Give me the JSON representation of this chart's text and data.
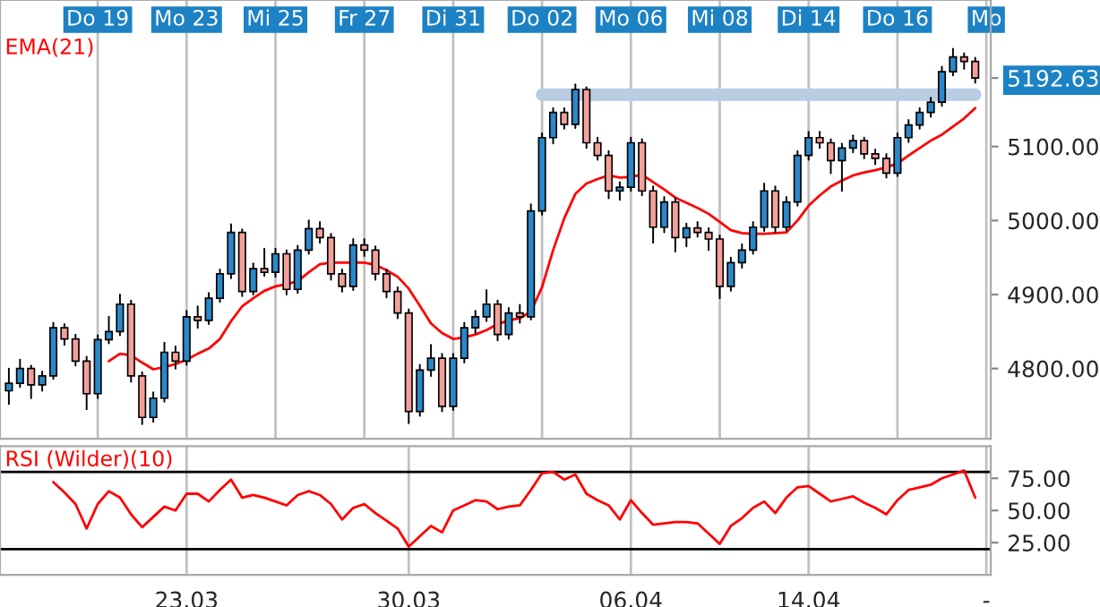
{
  "chart_data": [
    {
      "type": "candlestick",
      "categories": [
        null,
        null,
        null,
        null,
        null,
        null,
        null,
        null,
        "Do 19",
        null,
        null,
        null,
        null,
        null,
        null,
        null,
        "Mo 23",
        null,
        null,
        null,
        null,
        null,
        null,
        null,
        "Mi 25",
        null,
        null,
        null,
        null,
        null,
        null,
        null,
        "Fr 27",
        null,
        null,
        null,
        null,
        null,
        null,
        null,
        "Di 31",
        null,
        null,
        null,
        null,
        null,
        null,
        null,
        "Do 02",
        null,
        null,
        null,
        null,
        null,
        null,
        null,
        "Mo 06",
        null,
        null,
        null,
        null,
        null,
        null,
        null,
        "Mi 08",
        null,
        null,
        null,
        null,
        null,
        null,
        null,
        "Di 14",
        null,
        null,
        null,
        null,
        null,
        null,
        null,
        "Do 16",
        null,
        null,
        null,
        null,
        null,
        null,
        null,
        "Mo"
      ],
      "ohlc": [
        [
          4770,
          4800,
          4752,
          4780
        ],
        [
          4780,
          4812,
          4775,
          4800
        ],
        [
          4800,
          4804,
          4760,
          4778
        ],
        [
          4778,
          4796,
          4770,
          4790
        ],
        [
          4790,
          4862,
          4786,
          4855
        ],
        [
          4855,
          4860,
          4832,
          4840
        ],
        [
          4840,
          4846,
          4804,
          4810
        ],
        [
          4810,
          4816,
          4745,
          4766
        ],
        [
          4766,
          4845,
          4760,
          4839
        ],
        [
          4839,
          4870,
          4834,
          4850
        ],
        [
          4850,
          4900,
          4845,
          4887
        ],
        [
          4887,
          4892,
          4782,
          4790
        ],
        [
          4790,
          4795,
          4725,
          4734
        ],
        [
          4734,
          4768,
          4728,
          4760
        ],
        [
          4760,
          4835,
          4755,
          4822
        ],
        [
          4822,
          4830,
          4800,
          4810
        ],
        [
          4810,
          4878,
          4805,
          4870
        ],
        [
          4870,
          4884,
          4855,
          4865
        ],
        [
          4865,
          4902,
          4860,
          4895
        ],
        [
          4895,
          4934,
          4890,
          4928
        ],
        [
          4928,
          4995,
          4922,
          4984
        ],
        [
          4984,
          4988,
          4898,
          4904
        ],
        [
          4904,
          4942,
          4900,
          4935
        ],
        [
          4935,
          4962,
          4925,
          4930
        ],
        [
          4930,
          4962,
          4924,
          4955
        ],
        [
          4955,
          4960,
          4900,
          4907
        ],
        [
          4907,
          4966,
          4902,
          4960
        ],
        [
          4960,
          5000,
          4955,
          4989
        ],
        [
          4989,
          4998,
          4970,
          4977
        ],
        [
          4977,
          4982,
          4920,
          4928
        ],
        [
          4928,
          4934,
          4904,
          4911
        ],
        [
          4911,
          4975,
          4906,
          4967
        ],
        [
          4967,
          4975,
          4952,
          4960
        ],
        [
          4960,
          4965,
          4920,
          4928
        ],
        [
          4928,
          4934,
          4896,
          4904
        ],
        [
          4904,
          4910,
          4868,
          4875
        ],
        [
          4875,
          4880,
          4726,
          4742
        ],
        [
          4742,
          4805,
          4736,
          4798
        ],
        [
          4798,
          4832,
          4790,
          4814
        ],
        [
          4814,
          4820,
          4742,
          4749
        ],
        [
          4749,
          4820,
          4744,
          4814
        ],
        [
          4814,
          4862,
          4808,
          4855
        ],
        [
          4855,
          4878,
          4848,
          4870
        ],
        [
          4870,
          4906,
          4864,
          4887
        ],
        [
          4887,
          4892,
          4838,
          4846
        ],
        [
          4846,
          4882,
          4840,
          4875
        ],
        [
          4875,
          4886,
          4862,
          4870
        ],
        [
          4870,
          5022,
          4866,
          5013
        ],
        [
          5013,
          5118,
          5008,
          5112
        ],
        [
          5112,
          5152,
          5104,
          5146
        ],
        [
          5146,
          5152,
          5124,
          5130
        ],
        [
          5130,
          5184,
          5125,
          5177
        ],
        [
          5177,
          5180,
          5098,
          5105
        ],
        [
          5105,
          5112,
          5082,
          5088
        ],
        [
          5088,
          5094,
          5030,
          5040
        ],
        [
          5040,
          5052,
          5028,
          5045
        ],
        [
          5045,
          5112,
          5040,
          5105
        ],
        [
          5105,
          5110,
          5034,
          5040
        ],
        [
          5040,
          5046,
          4970,
          4991
        ],
        [
          4991,
          5032,
          4984,
          5025
        ],
        [
          5025,
          5030,
          4958,
          4977
        ],
        [
          4977,
          4996,
          4965,
          4990
        ],
        [
          4990,
          4998,
          4978,
          4984
        ],
        [
          4984,
          4990,
          4960,
          4975
        ],
        [
          4975,
          4980,
          4895,
          4911
        ],
        [
          4911,
          4950,
          4905,
          4943
        ],
        [
          4943,
          4968,
          4936,
          4960
        ],
        [
          4960,
          4998,
          4955,
          4991
        ],
        [
          4991,
          5050,
          4986,
          5040
        ],
        [
          5040,
          5046,
          4984,
          4991
        ],
        [
          4991,
          5032,
          4986,
          5025
        ],
        [
          5025,
          5094,
          5020,
          5088
        ],
        [
          5088,
          5120,
          5082,
          5112
        ],
        [
          5112,
          5120,
          5098,
          5105
        ],
        [
          5105,
          5110,
          5064,
          5081
        ],
        [
          5081,
          5104,
          5040,
          5098
        ],
        [
          5098,
          5115,
          5092,
          5108
        ],
        [
          5108,
          5112,
          5084,
          5090
        ],
        [
          5090,
          5096,
          5076,
          5084
        ],
        [
          5084,
          5090,
          5058,
          5064
        ],
        [
          5064,
          5118,
          5060,
          5112
        ],
        [
          5112,
          5136,
          5106,
          5129
        ],
        [
          5129,
          5152,
          5124,
          5146
        ],
        [
          5146,
          5166,
          5140,
          5160
        ],
        [
          5160,
          5208,
          5155,
          5201
        ],
        [
          5201,
          5232,
          5196,
          5221
        ],
        [
          5221,
          5226,
          5205,
          5215
        ],
        [
          5215,
          5220,
          5186,
          5192.63
        ],
        null
      ],
      "series": [
        {
          "type": "line",
          "name": "EMA(21)",
          "color": "#ff0000",
          "values": [
            null,
            null,
            null,
            null,
            null,
            null,
            null,
            null,
            null,
            4810,
            4820,
            4818,
            4808,
            4799,
            4802,
            4806,
            4812,
            4820,
            4827,
            4840,
            4864,
            4884,
            4895,
            4905,
            4911,
            4914,
            4918,
            4930,
            4941,
            4943,
            4943,
            4943,
            4943,
            4940,
            4933,
            4924,
            4908,
            4885,
            4861,
            4848,
            4840,
            4842,
            4846,
            4852,
            4860,
            4865,
            4868,
            4877,
            4910,
            4960,
            5003,
            5036,
            5050,
            5056,
            5061,
            5058,
            5059,
            5062,
            5052,
            5042,
            5031,
            5024,
            5017,
            5009,
            4998,
            4987,
            4983,
            4982,
            4982,
            4983,
            4984,
            5000,
            5020,
            5034,
            5046,
            5054,
            5061,
            5065,
            5068,
            5072,
            5077,
            5088,
            5098,
            5108,
            5116,
            5127,
            5138,
            5152,
            null
          ]
        },
        {
          "type": "line",
          "color": "#b8cce4",
          "values": [
            null,
            null,
            null,
            null,
            null,
            null,
            null,
            null,
            null,
            null,
            null,
            null,
            null,
            null,
            null,
            null,
            null,
            null,
            null,
            null,
            null,
            null,
            null,
            null,
            null,
            null,
            null,
            null,
            null,
            null,
            null,
            null,
            null,
            null,
            null,
            null,
            null,
            null,
            null,
            null,
            null,
            null,
            null,
            null,
            null,
            null,
            null,
            null,
            5170,
            5170,
            5170,
            5170,
            5170,
            5170,
            5170,
            5170,
            5170,
            5170,
            5170,
            5170,
            5170,
            5170,
            5170,
            5170,
            5170,
            5170,
            5170,
            5170,
            5170,
            5170,
            5170,
            5170,
            5170,
            5170,
            5170,
            5170,
            5170,
            5170,
            5170,
            5170,
            5170,
            5170,
            5170,
            5170,
            5170,
            5170,
            5170,
            5170,
            null
          ]
        }
      ],
      "ylim": [
        4705,
        5298
      ],
      "yticks": [
        {
          "value": 4800,
          "label": "4800.00"
        },
        {
          "value": 4900,
          "label": "4900.00"
        },
        {
          "value": 5000,
          "label": "5000.00"
        },
        {
          "value": 5100,
          "label": "5100.00"
        },
        5192.63
      ],
      "grid": "x"
    },
    {
      "type": "line",
      "categories": [
        null,
        null,
        null,
        null,
        null,
        null,
        null,
        null,
        null,
        null,
        null,
        null,
        null,
        null,
        null,
        null,
        "23.03",
        null,
        null,
        null,
        null,
        null,
        null,
        null,
        null,
        null,
        null,
        null,
        null,
        null,
        null,
        null,
        null,
        null,
        null,
        null,
        "30.03",
        null,
        null,
        null,
        null,
        null,
        null,
        null,
        null,
        null,
        null,
        null,
        null,
        null,
        null,
        null,
        null,
        null,
        null,
        null,
        "06.04",
        null,
        null,
        null,
        null,
        null,
        null,
        null,
        null,
        null,
        null,
        null,
        null,
        null,
        null,
        null,
        "14.04",
        null,
        null,
        null,
        null,
        null,
        null,
        null,
        null,
        null,
        null,
        null,
        null,
        null,
        null,
        null,
        "-"
      ],
      "series": [
        {
          "name": "RSI (Wilder)(10)",
          "color": "#ff0000",
          "values": [
            null,
            null,
            null,
            null,
            72,
            64,
            55,
            36,
            55,
            65,
            60,
            47,
            37,
            45,
            53,
            50,
            63,
            63,
            57,
            66,
            74,
            60,
            62,
            60,
            57,
            54,
            62,
            65,
            62,
            55,
            43,
            52,
            55,
            48,
            42,
            36,
            22,
            30,
            38,
            33,
            50,
            54,
            58,
            57,
            51,
            53,
            54,
            66,
            79,
            80,
            74,
            78,
            63,
            58,
            54,
            43,
            58,
            48,
            39,
            40,
            41,
            41,
            40,
            32,
            24,
            38,
            44,
            52,
            57,
            48,
            60,
            68,
            69,
            63,
            57,
            59,
            61,
            56,
            52,
            47,
            58,
            66,
            68,
            70,
            75,
            78,
            81,
            60,
            null
          ]
        }
      ],
      "ylim": [
        0,
        100
      ],
      "yticks": [
        {
          "value": 25,
          "label": "25.00"
        },
        {
          "value": 50,
          "label": "50.00"
        },
        {
          "value": 75,
          "label": "75.00"
        }
      ],
      "ref_lines": [
        {
          "axis": "y",
          "value": 80,
          "color": "#000000"
        },
        {
          "axis": "y",
          "value": 20,
          "color": "#000000"
        }
      ],
      "grid": "x"
    }
  ]
}
